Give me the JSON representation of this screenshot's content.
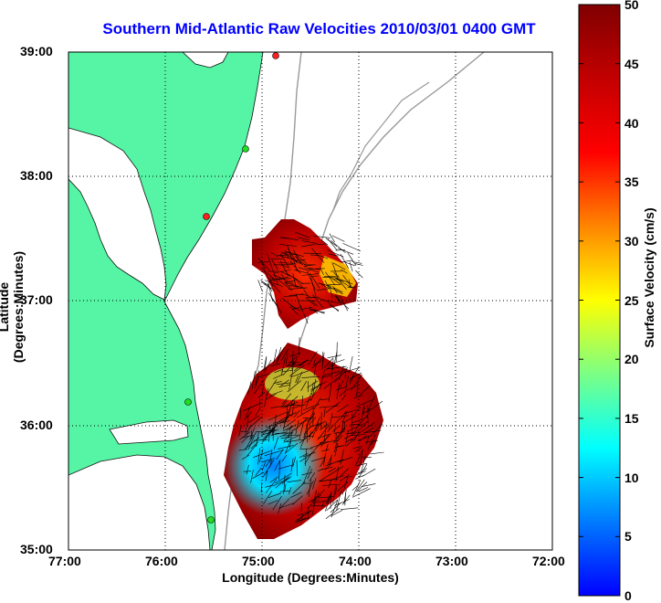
{
  "title": "Southern Mid-Atlantic Raw Velocities 2010/03/01 0400 GMT",
  "axes": {
    "xlabel": "Longitude (Degrees:Minutes)",
    "ylabel": "Latitude (Degrees:Minutes)",
    "x_ticks": [
      "77:00",
      "76:00",
      "75:00",
      "74:00",
      "73:00",
      "72:00"
    ],
    "y_ticks": [
      "39:00",
      "38:00",
      "37:00",
      "36:00",
      "35:00"
    ],
    "grid": "dotted"
  },
  "colorbar": {
    "label": "Surface Velocity (cm/s)",
    "ticks": [
      "50",
      "45",
      "40",
      "35",
      "30",
      "25",
      "20",
      "15",
      "10",
      "5",
      "0"
    ],
    "min": 0,
    "max": 50
  },
  "colors": {
    "land": "#55f5a5",
    "title": "#0000ff",
    "bathymetry": "#999999"
  }
}
